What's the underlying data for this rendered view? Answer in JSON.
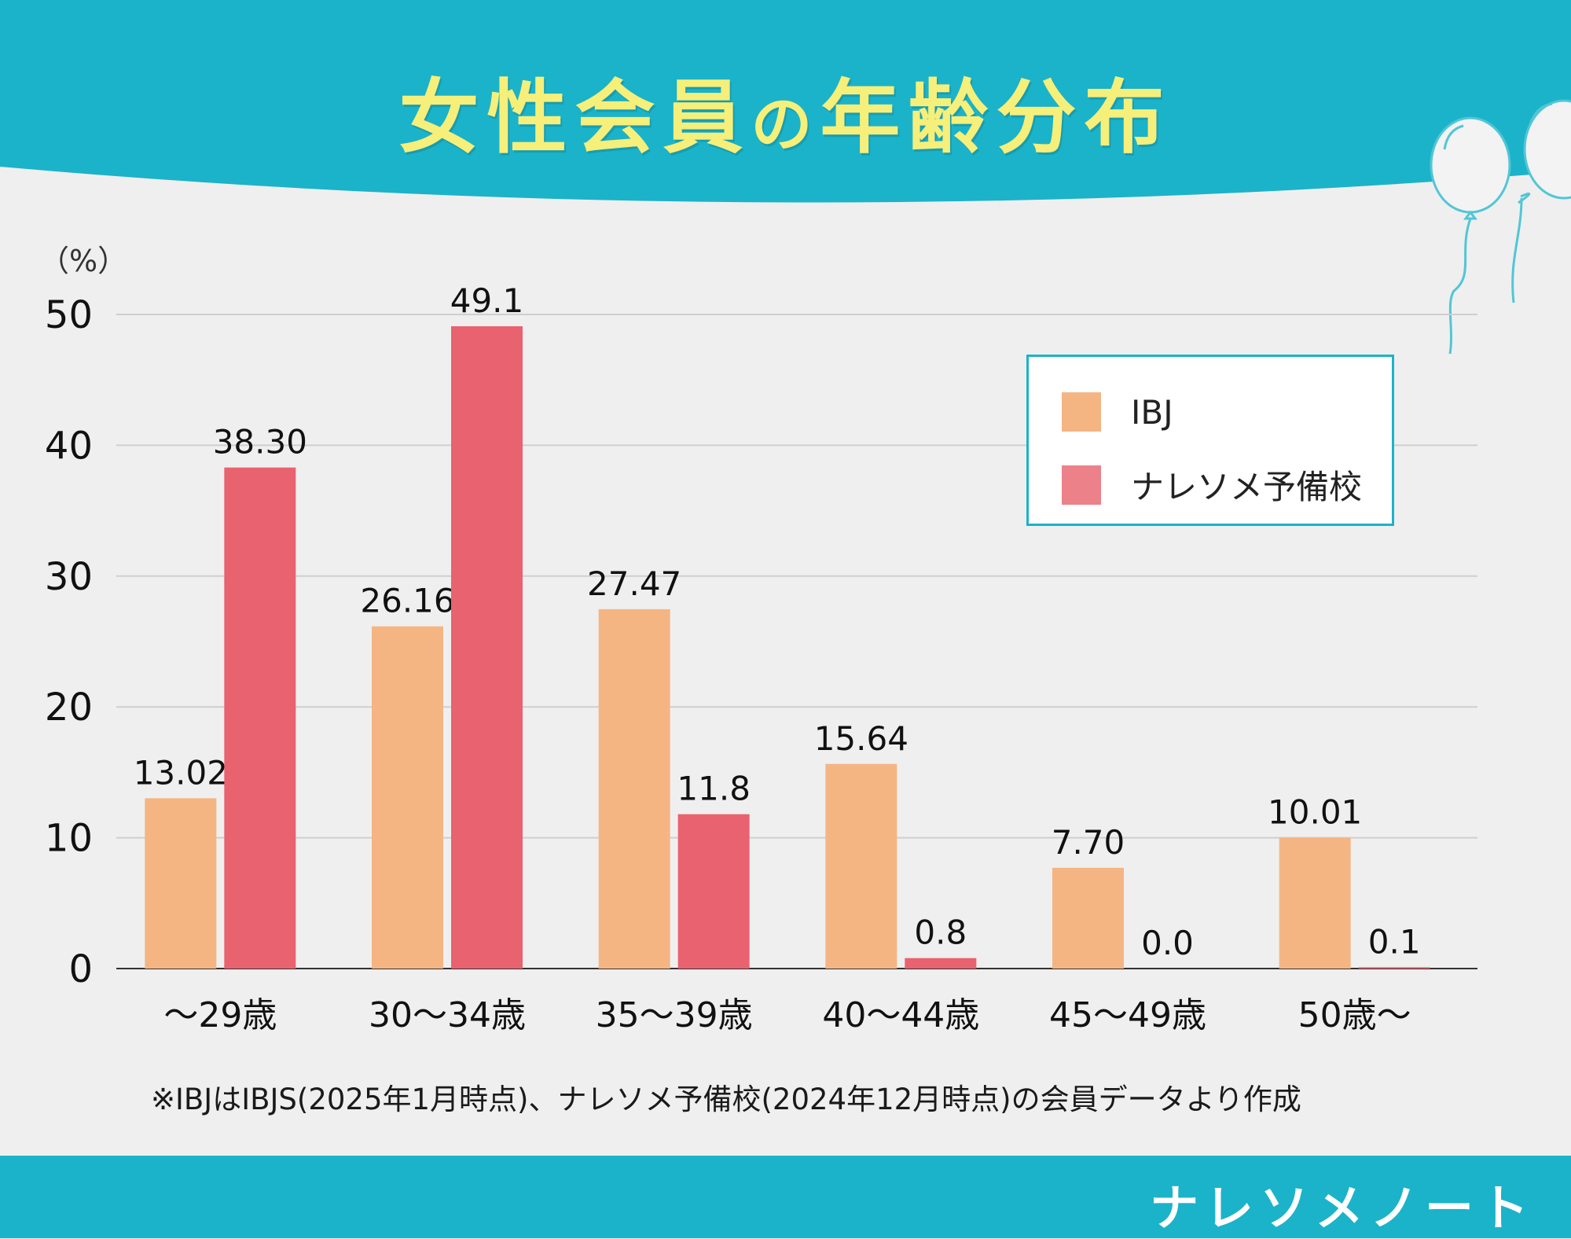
{
  "header": {
    "title_main": "女性会員",
    "title_particle": "の",
    "title_end": "年齢分布"
  },
  "colors": {
    "header_bg": "#1bb3c9",
    "title": "#f6ef7a",
    "ibj": "#f5b583",
    "nareso": "#e9626f",
    "legend_nareso": "#ec8189",
    "background": "#efefef"
  },
  "chart_data": {
    "type": "bar",
    "title": "女性会員の年齢分布",
    "ylabel": "（%）",
    "xlabel": "",
    "ylim": [
      0,
      50
    ],
    "yticks": [
      0,
      10,
      20,
      30,
      40,
      50
    ],
    "grid": true,
    "legend_position": "top-right",
    "categories": [
      "～29歳",
      "30～34歳",
      "35～39歳",
      "40～44歳",
      "45～49歳",
      "50歳～"
    ],
    "series": [
      {
        "name": "IBJ",
        "values": [
          13.02,
          26.16,
          27.47,
          15.64,
          7.7,
          10.01
        ],
        "labels": [
          "13.02",
          "26.16",
          "27.47",
          "15.64",
          "7.70",
          "10.01"
        ]
      },
      {
        "name": "ナレソメ予備校",
        "values": [
          38.3,
          49.1,
          11.8,
          0.8,
          0.0,
          0.1
        ],
        "labels": [
          "38.30",
          "49.1",
          "11.8",
          "0.8",
          "0.0",
          "0.1"
        ]
      }
    ]
  },
  "note": "※IBJはIBJS(2025年1月時点)、ナレソメ予備校(2024年12月時点)の会員データより作成",
  "footer": {
    "brand": "ナレソメノート"
  }
}
